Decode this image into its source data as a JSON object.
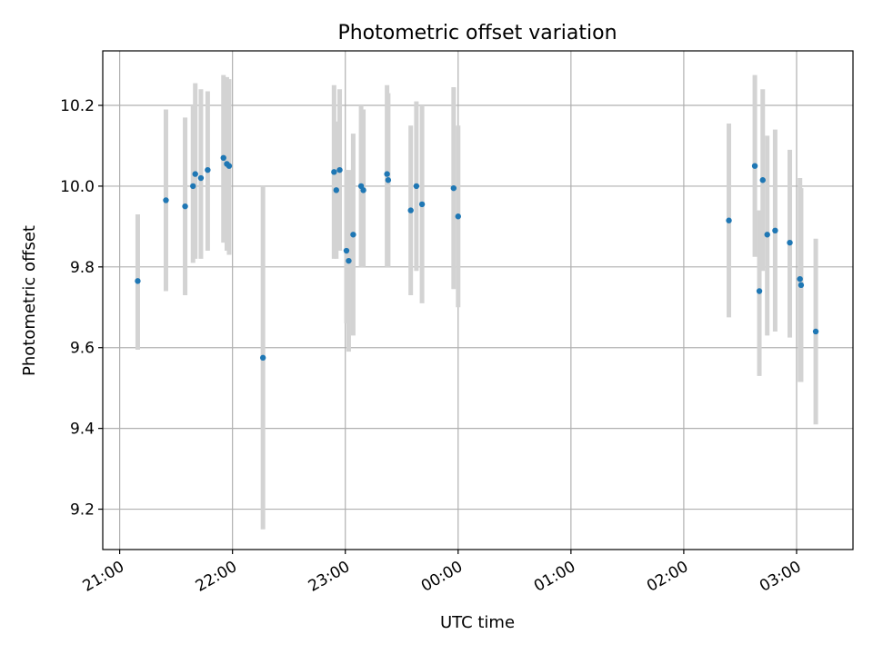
{
  "chart_data": {
    "type": "scatter",
    "title": "Photometric offset variation",
    "xlabel": "UTC time",
    "ylabel": "Photometric offset",
    "x_unit": "hours after 21:00 UTC",
    "xlim": [
      -0.15,
      6.5
    ],
    "ylim": [
      9.1,
      10.335
    ],
    "x_ticks": [
      {
        "label": "21:00",
        "value": 0
      },
      {
        "label": "22:00",
        "value": 1
      },
      {
        "label": "23:00",
        "value": 2
      },
      {
        "label": "00:00",
        "value": 3
      },
      {
        "label": "01:00",
        "value": 4
      },
      {
        "label": "02:00",
        "value": 5
      },
      {
        "label": "03:00",
        "value": 6
      }
    ],
    "y_ticks": [
      {
        "label": "9.2",
        "value": 9.2
      },
      {
        "label": "9.4",
        "value": 9.4
      },
      {
        "label": "9.6",
        "value": 9.6
      },
      {
        "label": "9.8",
        "value": 9.8
      },
      {
        "label": "10.0",
        "value": 10.0
      },
      {
        "label": "10.2",
        "value": 10.2
      }
    ],
    "grid": true,
    "colors": {
      "point": "#1f77b4",
      "errorbar": "#d3d3d3",
      "grid": "#b0b0b0"
    },
    "points": [
      {
        "x": 0.16,
        "y": 9.765,
        "lo": 9.595,
        "hi": 9.93
      },
      {
        "x": 0.41,
        "y": 9.965,
        "lo": 9.74,
        "hi": 10.19
      },
      {
        "x": 0.58,
        "y": 9.95,
        "lo": 9.73,
        "hi": 10.17
      },
      {
        "x": 0.65,
        "y": 10.0,
        "lo": 9.81,
        "hi": 10.2
      },
      {
        "x": 0.67,
        "y": 10.03,
        "lo": 9.82,
        "hi": 10.255
      },
      {
        "x": 0.72,
        "y": 10.02,
        "lo": 9.82,
        "hi": 10.24
      },
      {
        "x": 0.78,
        "y": 10.04,
        "lo": 9.84,
        "hi": 10.235
      },
      {
        "x": 0.92,
        "y": 10.07,
        "lo": 9.86,
        "hi": 10.275
      },
      {
        "x": 0.95,
        "y": 10.055,
        "lo": 9.84,
        "hi": 10.27
      },
      {
        "x": 0.97,
        "y": 10.05,
        "lo": 9.83,
        "hi": 10.265
      },
      {
        "x": 1.27,
        "y": 9.575,
        "lo": 9.15,
        "hi": 10.0
      },
      {
        "x": 1.9,
        "y": 10.035,
        "lo": 9.82,
        "hi": 10.25
      },
      {
        "x": 1.92,
        "y": 9.99,
        "lo": 9.82,
        "hi": 10.16
      },
      {
        "x": 1.95,
        "y": 10.04,
        "lo": 9.84,
        "hi": 10.24
      },
      {
        "x": 2.01,
        "y": 9.84,
        "lo": 9.66,
        "hi": 10.04
      },
      {
        "x": 2.03,
        "y": 9.815,
        "lo": 9.59,
        "hi": 10.04
      },
      {
        "x": 2.07,
        "y": 9.88,
        "lo": 9.63,
        "hi": 10.13
      },
      {
        "x": 2.14,
        "y": 10.0,
        "lo": 9.8,
        "hi": 10.2
      },
      {
        "x": 2.16,
        "y": 9.99,
        "lo": 9.8,
        "hi": 10.19
      },
      {
        "x": 2.37,
        "y": 10.03,
        "lo": 9.8,
        "hi": 10.25
      },
      {
        "x": 2.38,
        "y": 10.015,
        "lo": 9.8,
        "hi": 10.23
      },
      {
        "x": 2.58,
        "y": 9.94,
        "lo": 9.73,
        "hi": 10.15
      },
      {
        "x": 2.63,
        "y": 10.0,
        "lo": 9.79,
        "hi": 10.21
      },
      {
        "x": 2.68,
        "y": 9.955,
        "lo": 9.71,
        "hi": 10.2
      },
      {
        "x": 2.96,
        "y": 9.995,
        "lo": 9.745,
        "hi": 10.245
      },
      {
        "x": 3.0,
        "y": 9.925,
        "lo": 9.7,
        "hi": 10.15
      },
      {
        "x": 5.4,
        "y": 9.915,
        "lo": 9.675,
        "hi": 10.155
      },
      {
        "x": 5.63,
        "y": 10.05,
        "lo": 9.825,
        "hi": 10.275
      },
      {
        "x": 5.67,
        "y": 9.74,
        "lo": 9.53,
        "hi": 9.94
      },
      {
        "x": 5.7,
        "y": 10.015,
        "lo": 9.79,
        "hi": 10.24
      },
      {
        "x": 5.74,
        "y": 9.88,
        "lo": 9.63,
        "hi": 10.125
      },
      {
        "x": 5.81,
        "y": 9.89,
        "lo": 9.64,
        "hi": 10.14
      },
      {
        "x": 5.94,
        "y": 9.86,
        "lo": 9.625,
        "hi": 10.09
      },
      {
        "x": 6.03,
        "y": 9.77,
        "lo": 9.515,
        "hi": 10.02
      },
      {
        "x": 6.04,
        "y": 9.755,
        "lo": 9.515,
        "hi": 9.995
      },
      {
        "x": 6.17,
        "y": 9.64,
        "lo": 9.41,
        "hi": 9.87
      }
    ]
  }
}
